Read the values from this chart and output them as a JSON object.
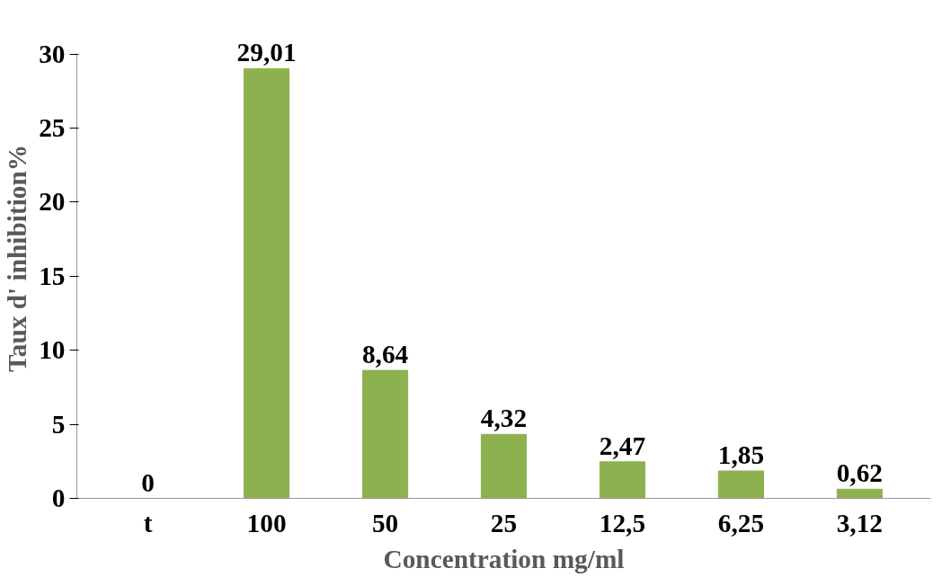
{
  "chart_data": {
    "type": "bar",
    "xlabel": "Concentration mg/ml",
    "ylabel": "Taux d' inhibition%",
    "categories": [
      "t",
      "100",
      "50",
      "25",
      "12,5",
      "6,25",
      "3,12"
    ],
    "values": [
      0,
      29.01,
      8.64,
      4.32,
      2.47,
      1.85,
      0.62
    ],
    "value_labels": [
      "0",
      "29,01",
      "8,64",
      "4,32",
      "2,47",
      "1,85",
      "0,62"
    ],
    "color": "#8db14f",
    "ylim": [
      0,
      30
    ],
    "yticks": [
      0,
      5,
      10,
      15,
      20,
      25,
      30
    ],
    "grid": false
  }
}
